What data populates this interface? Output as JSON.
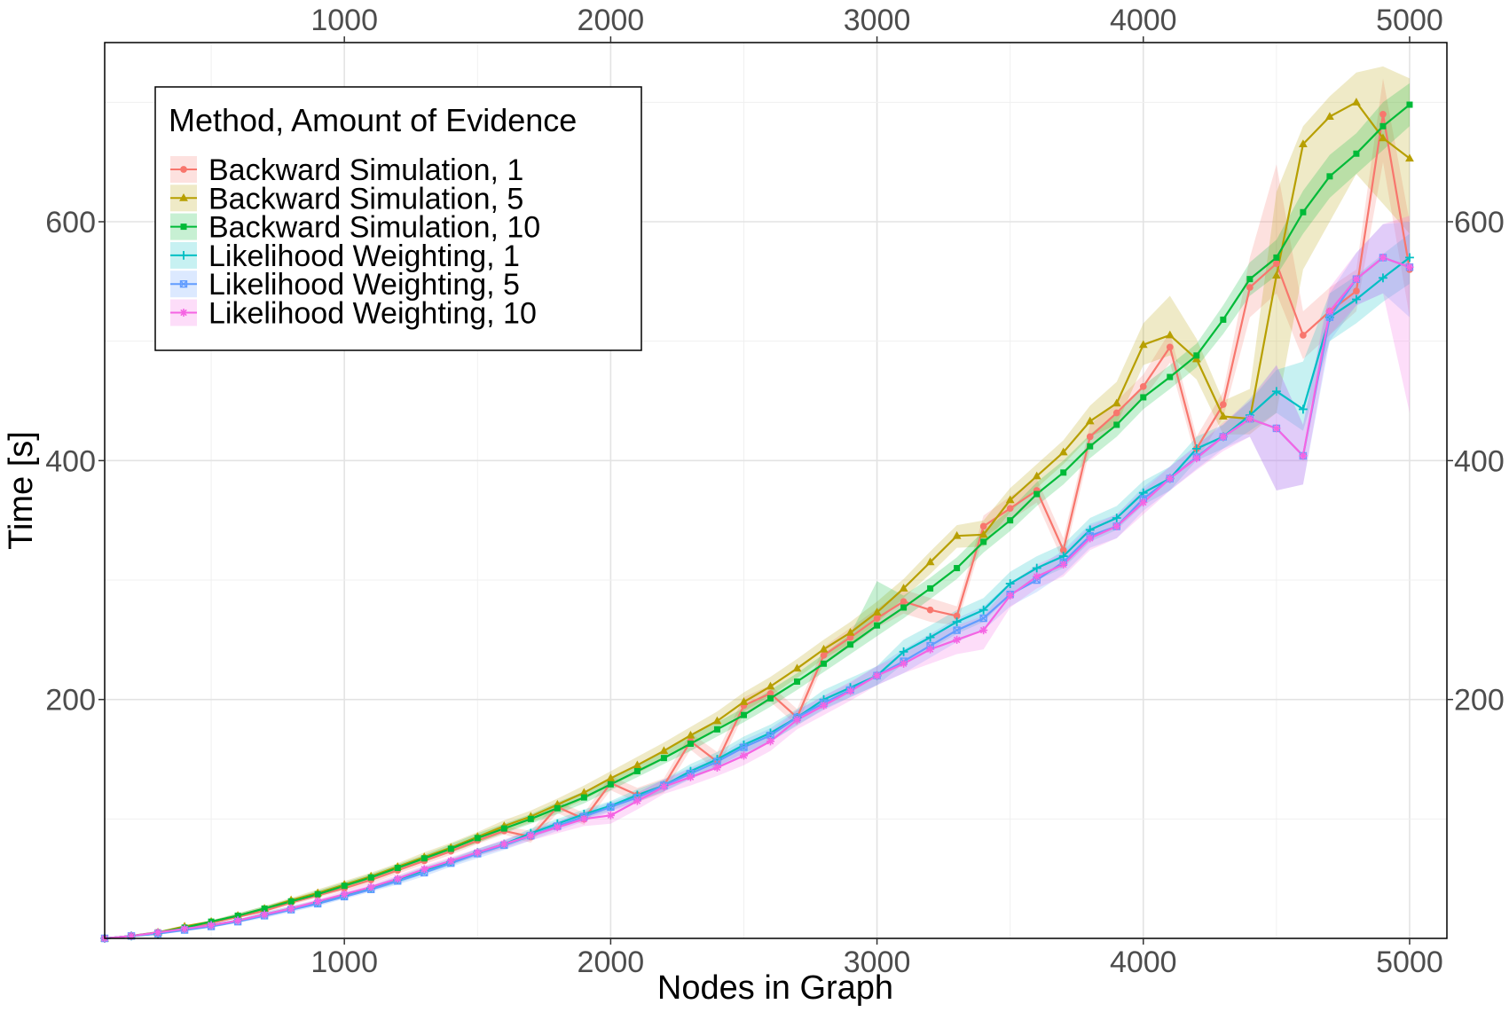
{
  "chart_data": {
    "type": "line",
    "xlabel": "Nodes in Graph",
    "ylabel": "Time [s]",
    "xlim": [
      100,
      5140
    ],
    "ylim": [
      0,
      750
    ],
    "x_ticks": [
      1000,
      2000,
      3000,
      4000,
      5000
    ],
    "x_tick_labels": [
      "1000",
      "2000",
      "3000",
      "4000",
      "5000"
    ],
    "y_ticks": [
      200,
      400,
      600
    ],
    "y_tick_labels": [
      "200",
      "400",
      "600"
    ],
    "grid": true,
    "secondary_axes": "mirrored top and right",
    "legend": {
      "title": "Method, Amount of Evidence",
      "position": "top-left"
    },
    "x": [
      100,
      200,
      300,
      400,
      500,
      600,
      700,
      800,
      900,
      1000,
      1100,
      1200,
      1300,
      1400,
      1500,
      1600,
      1700,
      1800,
      1900,
      2000,
      2100,
      2200,
      2300,
      2400,
      2500,
      2600,
      2700,
      2800,
      2900,
      3000,
      3100,
      3200,
      3300,
      3400,
      3500,
      3600,
      3700,
      3800,
      3900,
      4000,
      4100,
      4200,
      4300,
      4400,
      4500,
      4600,
      4700,
      4800,
      4900,
      5000
    ],
    "series": [
      {
        "name": "Backward Simulation, 1",
        "color": "#F8766D",
        "marker": "circle",
        "values": [
          0,
          2,
          5,
          9,
          13,
          18,
          23,
          30,
          36,
          42,
          49,
          57,
          65,
          73,
          82,
          90,
          85,
          110,
          100,
          130,
          120,
          128,
          165,
          148,
          195,
          205,
          185,
          237,
          252,
          268,
          282,
          275,
          270,
          345,
          360,
          375,
          325,
          420,
          440,
          462,
          495,
          410,
          447,
          545,
          565,
          505,
          525,
          542,
          690,
          560
        ],
        "lower": [
          0,
          2,
          4,
          8,
          12,
          17,
          22,
          28,
          34,
          40,
          46,
          54,
          62,
          70,
          79,
          87,
          80,
          105,
          95,
          124,
          114,
          122,
          158,
          140,
          188,
          198,
          178,
          230,
          244,
          260,
          272,
          265,
          262,
          336,
          350,
          365,
          315,
          410,
          430,
          452,
          482,
          400,
          436,
          520,
          540,
          485,
          505,
          525,
          650,
          520
        ],
        "upper": [
          0,
          3,
          6,
          10,
          14,
          19,
          25,
          32,
          38,
          45,
          52,
          60,
          68,
          77,
          86,
          94,
          90,
          115,
          105,
          136,
          126,
          134,
          172,
          156,
          202,
          212,
          192,
          244,
          260,
          276,
          292,
          285,
          278,
          354,
          370,
          385,
          335,
          430,
          450,
          472,
          508,
          420,
          458,
          570,
          648,
          525,
          545,
          560,
          720,
          600
        ]
      },
      {
        "name": "Backward Simulation, 5",
        "color": "#B79F00",
        "marker": "triangle",
        "values": [
          0,
          2,
          5,
          10,
          14,
          19,
          25,
          32,
          38,
          45,
          52,
          60,
          68,
          76,
          85,
          94,
          102,
          112,
          122,
          134,
          145,
          157,
          170,
          182,
          198,
          211,
          226,
          242,
          256,
          273,
          293,
          315,
          337,
          338,
          367,
          387,
          407,
          433,
          448,
          497,
          505,
          485,
          437,
          435,
          555,
          665,
          688,
          700,
          670,
          653
        ],
        "lower": [
          0,
          1,
          4,
          8,
          12,
          17,
          23,
          29,
          35,
          42,
          48,
          56,
          64,
          72,
          80,
          89,
          97,
          106,
          116,
          128,
          138,
          150,
          162,
          174,
          190,
          203,
          218,
          234,
          247,
          264,
          285,
          305,
          327,
          328,
          357,
          377,
          397,
          420,
          430,
          480,
          488,
          468,
          422,
          422,
          440,
          560,
          600,
          640,
          615,
          590
        ],
        "upper": [
          0,
          3,
          6,
          11,
          15,
          21,
          27,
          34,
          41,
          48,
          55,
          63,
          72,
          80,
          89,
          99,
          107,
          117,
          128,
          140,
          152,
          164,
          177,
          190,
          206,
          219,
          234,
          250,
          265,
          282,
          301,
          324,
          346,
          350,
          377,
          397,
          417,
          446,
          466,
          515,
          538,
          502,
          450,
          460,
          625,
          680,
          705,
          725,
          730,
          720
        ]
      },
      {
        "name": "Backward Simulation, 10",
        "color": "#00BA38",
        "marker": "square",
        "values": [
          0,
          2,
          5,
          9,
          14,
          19,
          25,
          31,
          37,
          44,
          51,
          59,
          67,
          75,
          84,
          92,
          100,
          109,
          118,
          129,
          140,
          151,
          163,
          175,
          187,
          201,
          215,
          230,
          246,
          262,
          277,
          293,
          310,
          332,
          350,
          372,
          390,
          412,
          430,
          453,
          470,
          488,
          518,
          552,
          570,
          608,
          638,
          657,
          680,
          698
        ],
        "lower": [
          0,
          1,
          4,
          8,
          12,
          17,
          23,
          29,
          35,
          41,
          48,
          56,
          64,
          72,
          80,
          88,
          96,
          104,
          113,
          124,
          135,
          146,
          157,
          169,
          181,
          194,
          208,
          223,
          238,
          253,
          268,
          284,
          301,
          323,
          341,
          362,
          380,
          402,
          420,
          443,
          460,
          478,
          506,
          538,
          555,
          590,
          620,
          640,
          660,
          680
        ],
        "upper": [
          0,
          3,
          6,
          10,
          15,
          21,
          27,
          33,
          40,
          47,
          54,
          62,
          70,
          79,
          88,
          96,
          104,
          114,
          123,
          134,
          145,
          156,
          169,
          181,
          193,
          208,
          222,
          238,
          255,
          299,
          287,
          302,
          319,
          341,
          359,
          382,
          400,
          422,
          440,
          463,
          480,
          498,
          530,
          566,
          585,
          626,
          656,
          674,
          700,
          716
        ]
      },
      {
        "name": "Likelihood Weighting, 1",
        "color": "#00BFC4",
        "marker": "plus",
        "values": [
          0,
          2,
          4,
          8,
          11,
          15,
          20,
          25,
          30,
          36,
          42,
          49,
          57,
          64,
          72,
          79,
          88,
          96,
          104,
          111,
          120,
          128,
          140,
          150,
          162,
          172,
          185,
          200,
          210,
          220,
          240,
          252,
          265,
          275,
          297,
          310,
          320,
          342,
          352,
          373,
          385,
          410,
          420,
          438,
          458,
          443,
          520,
          535,
          553,
          570
        ],
        "lower": [
          0,
          1,
          3,
          7,
          10,
          14,
          18,
          23,
          28,
          34,
          40,
          46,
          54,
          61,
          69,
          76,
          84,
          92,
          100,
          107,
          115,
          123,
          134,
          144,
          155,
          165,
          178,
          192,
          202,
          212,
          230,
          242,
          255,
          265,
          287,
          300,
          310,
          332,
          342,
          363,
          375,
          400,
          410,
          425,
          440,
          425,
          500,
          515,
          533,
          548
        ],
        "upper": [
          0,
          3,
          5,
          9,
          12,
          16,
          22,
          27,
          32,
          38,
          44,
          52,
          60,
          67,
          75,
          82,
          92,
          100,
          108,
          115,
          125,
          133,
          146,
          156,
          169,
          179,
          192,
          208,
          218,
          228,
          250,
          262,
          275,
          285,
          307,
          320,
          330,
          352,
          362,
          383,
          395,
          420,
          430,
          450,
          476,
          483,
          540,
          555,
          573,
          590
        ]
      },
      {
        "name": "Likelihood Weighting, 5",
        "color": "#619CFF",
        "marker": "square-cross",
        "values": [
          0,
          2,
          4,
          7,
          10,
          14,
          19,
          24,
          29,
          35,
          41,
          48,
          55,
          63,
          71,
          78,
          86,
          94,
          102,
          110,
          118,
          128,
          138,
          148,
          160,
          170,
          185,
          197,
          208,
          220,
          232,
          245,
          258,
          268,
          288,
          300,
          315,
          337,
          345,
          368,
          385,
          403,
          420,
          435,
          427,
          404,
          520,
          552,
          570,
          562
        ],
        "lower": [
          0,
          1,
          3,
          6,
          9,
          13,
          17,
          22,
          27,
          33,
          39,
          45,
          52,
          60,
          67,
          74,
          82,
          90,
          98,
          106,
          114,
          123,
          133,
          143,
          154,
          164,
          179,
          191,
          202,
          212,
          222,
          235,
          248,
          258,
          278,
          290,
          305,
          327,
          335,
          358,
          375,
          393,
          410,
          420,
          375,
          380,
          500,
          530,
          540,
          520
        ],
        "upper": [
          0,
          3,
          5,
          8,
          11,
          15,
          21,
          26,
          31,
          37,
          43,
          51,
          58,
          66,
          75,
          82,
          90,
          98,
          106,
          114,
          122,
          133,
          143,
          153,
          166,
          176,
          191,
          203,
          214,
          228,
          242,
          255,
          268,
          278,
          298,
          310,
          325,
          347,
          355,
          378,
          395,
          413,
          430,
          452,
          480,
          430,
          540,
          574,
          598,
          600
        ]
      },
      {
        "name": "Likelihood Weighting, 10",
        "color": "#F564E3",
        "marker": "star",
        "values": [
          0,
          2,
          5,
          8,
          11,
          15,
          20,
          25,
          31,
          37,
          43,
          50,
          58,
          65,
          72,
          79,
          86,
          93,
          100,
          103,
          115,
          127,
          135,
          143,
          153,
          165,
          183,
          195,
          207,
          220,
          230,
          242,
          250,
          258,
          287,
          303,
          313,
          335,
          345,
          365,
          385,
          402,
          420,
          435,
          427,
          404,
          525,
          552,
          570,
          562
        ],
        "lower": [
          0,
          1,
          4,
          7,
          10,
          14,
          18,
          23,
          29,
          34,
          40,
          47,
          55,
          62,
          69,
          75,
          82,
          88,
          94,
          96,
          108,
          121,
          128,
          136,
          145,
          157,
          175,
          187,
          199,
          212,
          222,
          230,
          238,
          242,
          277,
          293,
          303,
          325,
          335,
          355,
          375,
          392,
          408,
          420,
          375,
          380,
          505,
          530,
          540,
          440
        ],
        "upper": [
          0,
          3,
          6,
          9,
          12,
          16,
          22,
          27,
          33,
          40,
          46,
          53,
          61,
          68,
          75,
          83,
          90,
          98,
          106,
          110,
          122,
          133,
          142,
          150,
          161,
          173,
          191,
          203,
          215,
          228,
          238,
          254,
          262,
          270,
          297,
          313,
          323,
          345,
          355,
          375,
          395,
          412,
          432,
          450,
          480,
          430,
          545,
          574,
          598,
          605
        ]
      }
    ]
  }
}
